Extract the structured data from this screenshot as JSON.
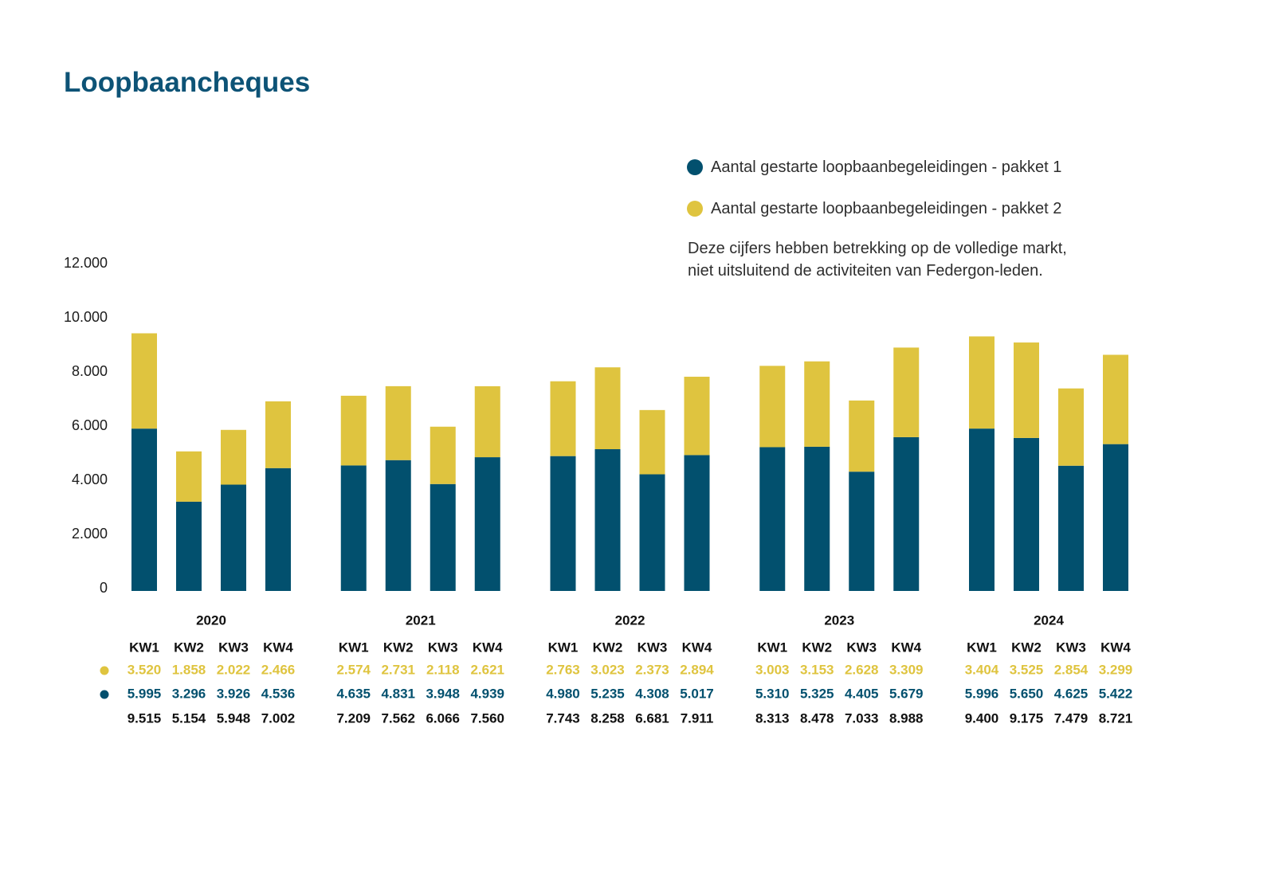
{
  "chart_data": {
    "type": "bar",
    "stacked": true,
    "title": "Loopbaancheques",
    "groups": [
      "2020",
      "2021",
      "2022",
      "2023",
      "2024"
    ],
    "categories": [
      "KW1",
      "KW2",
      "KW3",
      "KW4"
    ],
    "series": [
      {
        "name": "Aantal gestarte loopbaanbegeleidingen - pakket 1",
        "color": "#02506e",
        "values": [
          [
            5995,
            3296,
            3926,
            4536
          ],
          [
            4635,
            4831,
            3948,
            4939
          ],
          [
            4980,
            5235,
            4308,
            5017
          ],
          [
            5310,
            5325,
            4405,
            5679
          ],
          [
            5996,
            5650,
            4625,
            5422
          ]
        ]
      },
      {
        "name": "Aantal gestarte loopbaanbegeleidingen - pakket 2",
        "color": "#dfc43f",
        "values": [
          [
            3520,
            1858,
            2022,
            2466
          ],
          [
            2574,
            2731,
            2118,
            2621
          ],
          [
            2763,
            3023,
            2373,
            2894
          ],
          [
            3003,
            3153,
            2628,
            3309
          ],
          [
            3404,
            3525,
            2854,
            3299
          ]
        ]
      }
    ],
    "totals": [
      [
        9515,
        5154,
        5948,
        7002
      ],
      [
        7209,
        7562,
        6066,
        7560
      ],
      [
        7743,
        8258,
        6681,
        7911
      ],
      [
        8313,
        8478,
        7033,
        8988
      ],
      [
        9400,
        9175,
        7479,
        8721
      ]
    ],
    "ylim": [
      0,
      12000
    ],
    "yticks": [
      0,
      2000,
      4000,
      6000,
      8000,
      10000,
      12000
    ],
    "grid": false,
    "legend": "top-right",
    "note": [
      "Deze cijfers hebben betrekking op de volledige markt,",
      "niet uitsluitend de activiteiten van Federgon-leden."
    ]
  }
}
